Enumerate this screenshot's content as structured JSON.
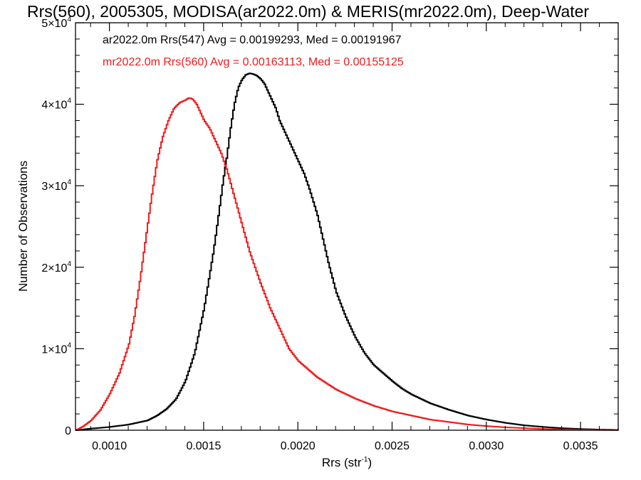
{
  "chart_data": {
    "type": "line",
    "title": "Rrs(560), 2005305, MODISA(ar2022.0m) & MERIS(mr2022.0m), Deep-Water",
    "xlabel": "Rrs (str",
    "xlabel_sup": "-1",
    "xlabel_end": ")",
    "ylabel": "Number of Observations",
    "xlim": [
      0.00082,
      0.0037
    ],
    "ylim": [
      0,
      50000
    ],
    "grid": false,
    "legend_position": "top-left",
    "x_ticks": [
      {
        "value": 0.001,
        "label": "0.0010"
      },
      {
        "value": 0.0015,
        "label": "0.0015"
      },
      {
        "value": 0.002,
        "label": "0.0020"
      },
      {
        "value": 0.0025,
        "label": "0.0025"
      },
      {
        "value": 0.003,
        "label": "0.0030"
      },
      {
        "value": 0.0035,
        "label": "0.0035"
      }
    ],
    "y_ticks": [
      {
        "value": 0,
        "mant": "0",
        "exp": ""
      },
      {
        "value": 10000,
        "mant": "1×10",
        "exp": "4"
      },
      {
        "value": 20000,
        "mant": "2×10",
        "exp": "4"
      },
      {
        "value": 30000,
        "mant": "3×10",
        "exp": "4"
      },
      {
        "value": 40000,
        "mant": "4×10",
        "exp": "4"
      },
      {
        "value": 50000,
        "mant": "5×10",
        "exp": "4"
      }
    ],
    "series": [
      {
        "label": "ar2022.0m Rrs(547) Avg = 0.00199293, Med = 0.00191967",
        "color": "#000000",
        "x": [
          0.00082,
          0.0009,
          0.001,
          0.0011,
          0.0012,
          0.00125,
          0.0013,
          0.00135,
          0.0014,
          0.00145,
          0.0015,
          0.00155,
          0.00158,
          0.0016,
          0.00162,
          0.00164,
          0.00166,
          0.00168,
          0.0017,
          0.00172,
          0.00174,
          0.00176,
          0.00178,
          0.0018,
          0.00182,
          0.00185,
          0.00188,
          0.0019,
          0.00193,
          0.00196,
          0.002,
          0.00203,
          0.00206,
          0.0021,
          0.00213,
          0.00216,
          0.0022,
          0.00225,
          0.0023,
          0.00235,
          0.0024,
          0.00245,
          0.0025,
          0.00255,
          0.0026,
          0.0027,
          0.0028,
          0.0029,
          0.003,
          0.0031,
          0.0032,
          0.0033,
          0.0034,
          0.0035,
          0.0036,
          0.0037
        ],
        "y": [
          0,
          200,
          400,
          700,
          1200,
          1800,
          2600,
          3800,
          6000,
          9500,
          15000,
          22000,
          27000,
          30500,
          33500,
          37000,
          40000,
          42000,
          43000,
          43600,
          43800,
          43700,
          43500,
          43100,
          42500,
          41000,
          39500,
          38000,
          36500,
          35000,
          33000,
          31500,
          29500,
          26500,
          23500,
          20500,
          17000,
          14000,
          11500,
          9500,
          8000,
          7000,
          6000,
          5100,
          4400,
          3300,
          2500,
          1800,
          1300,
          900,
          600,
          400,
          250,
          150,
          80,
          40
        ]
      },
      {
        "label": "mr2022.0m Rrs(560) Avg = 0.00163113, Med = 0.00155125",
        "color": "#ee1c1c",
        "x": [
          0.00082,
          0.00086,
          0.0009,
          0.00095,
          0.001,
          0.00105,
          0.0011,
          0.00113,
          0.00116,
          0.00119,
          0.00122,
          0.00125,
          0.00128,
          0.00131,
          0.00134,
          0.00137,
          0.0014,
          0.00142,
          0.00144,
          0.00146,
          0.00148,
          0.0015,
          0.00153,
          0.00156,
          0.00159,
          0.00162,
          0.00165,
          0.00168,
          0.00171,
          0.00174,
          0.00177,
          0.0018,
          0.00185,
          0.0019,
          0.00195,
          0.002,
          0.00205,
          0.0021,
          0.0022,
          0.0023,
          0.0024,
          0.0025,
          0.0026,
          0.0027,
          0.0028,
          0.0029,
          0.003,
          0.0031,
          0.0032,
          0.0033,
          0.0034,
          0.0035,
          0.0036,
          0.0037
        ],
        "y": [
          0,
          500,
          1200,
          2500,
          4500,
          7000,
          10500,
          14000,
          18500,
          23500,
          28500,
          33000,
          36000,
          38000,
          39500,
          40200,
          40500,
          40800,
          40600,
          40000,
          39000,
          38000,
          37000,
          35500,
          34000,
          32000,
          29500,
          27000,
          24500,
          22000,
          20000,
          18000,
          15000,
          12500,
          10000,
          8500,
          7500,
          6500,
          5000,
          3900,
          3000,
          2300,
          1800,
          1300,
          1000,
          700,
          500,
          350,
          250,
          150,
          100,
          60,
          30,
          15
        ]
      }
    ]
  }
}
